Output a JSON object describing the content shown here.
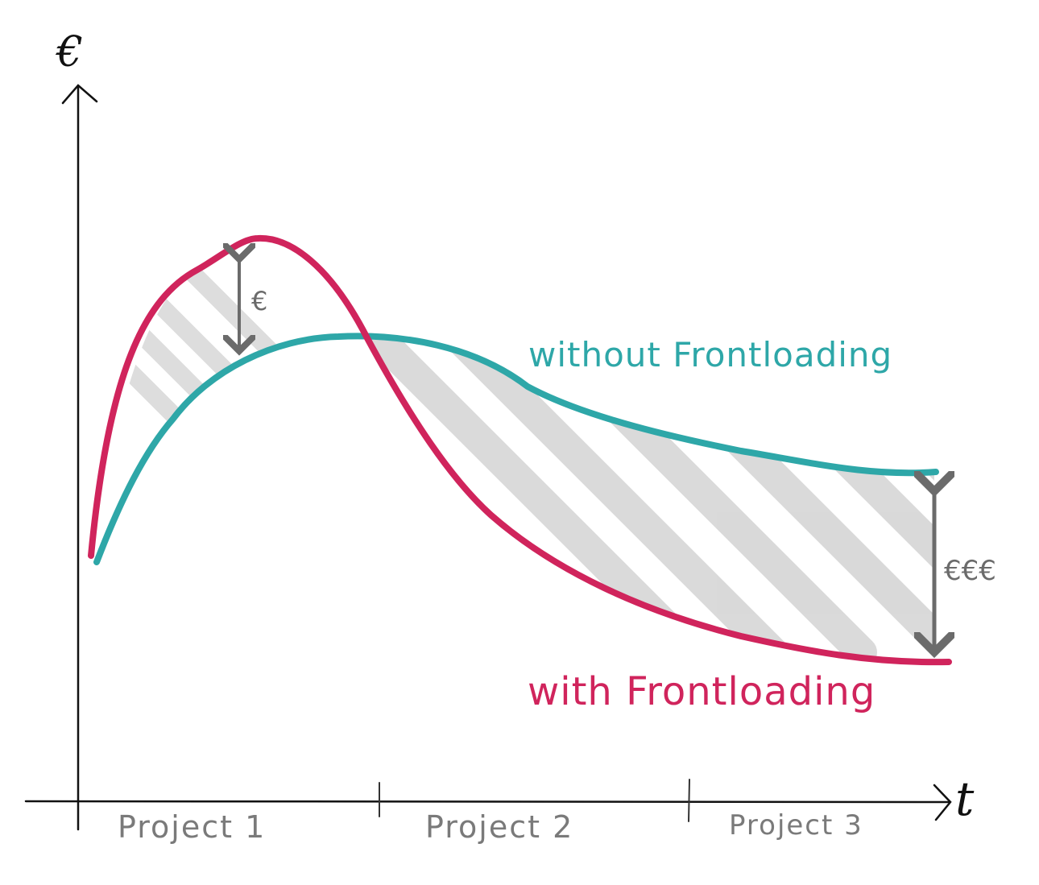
{
  "axes": {
    "y_label": "€",
    "x_label": "t"
  },
  "curves": {
    "without": {
      "label": "without Frontloading",
      "color": "#2ea7a8"
    },
    "with": {
      "label": "with Frontloading",
      "color": "#d0245c"
    }
  },
  "annotations": {
    "small_difference": "€",
    "large_difference": "€€€"
  },
  "phases": [
    "Project 1",
    "Project 2",
    "Project 3"
  ],
  "colors": {
    "axis": "#111111",
    "annotation": "#6b6b6b",
    "phase_text": "#7a7a7a",
    "hatch": "#9e9e9e"
  }
}
